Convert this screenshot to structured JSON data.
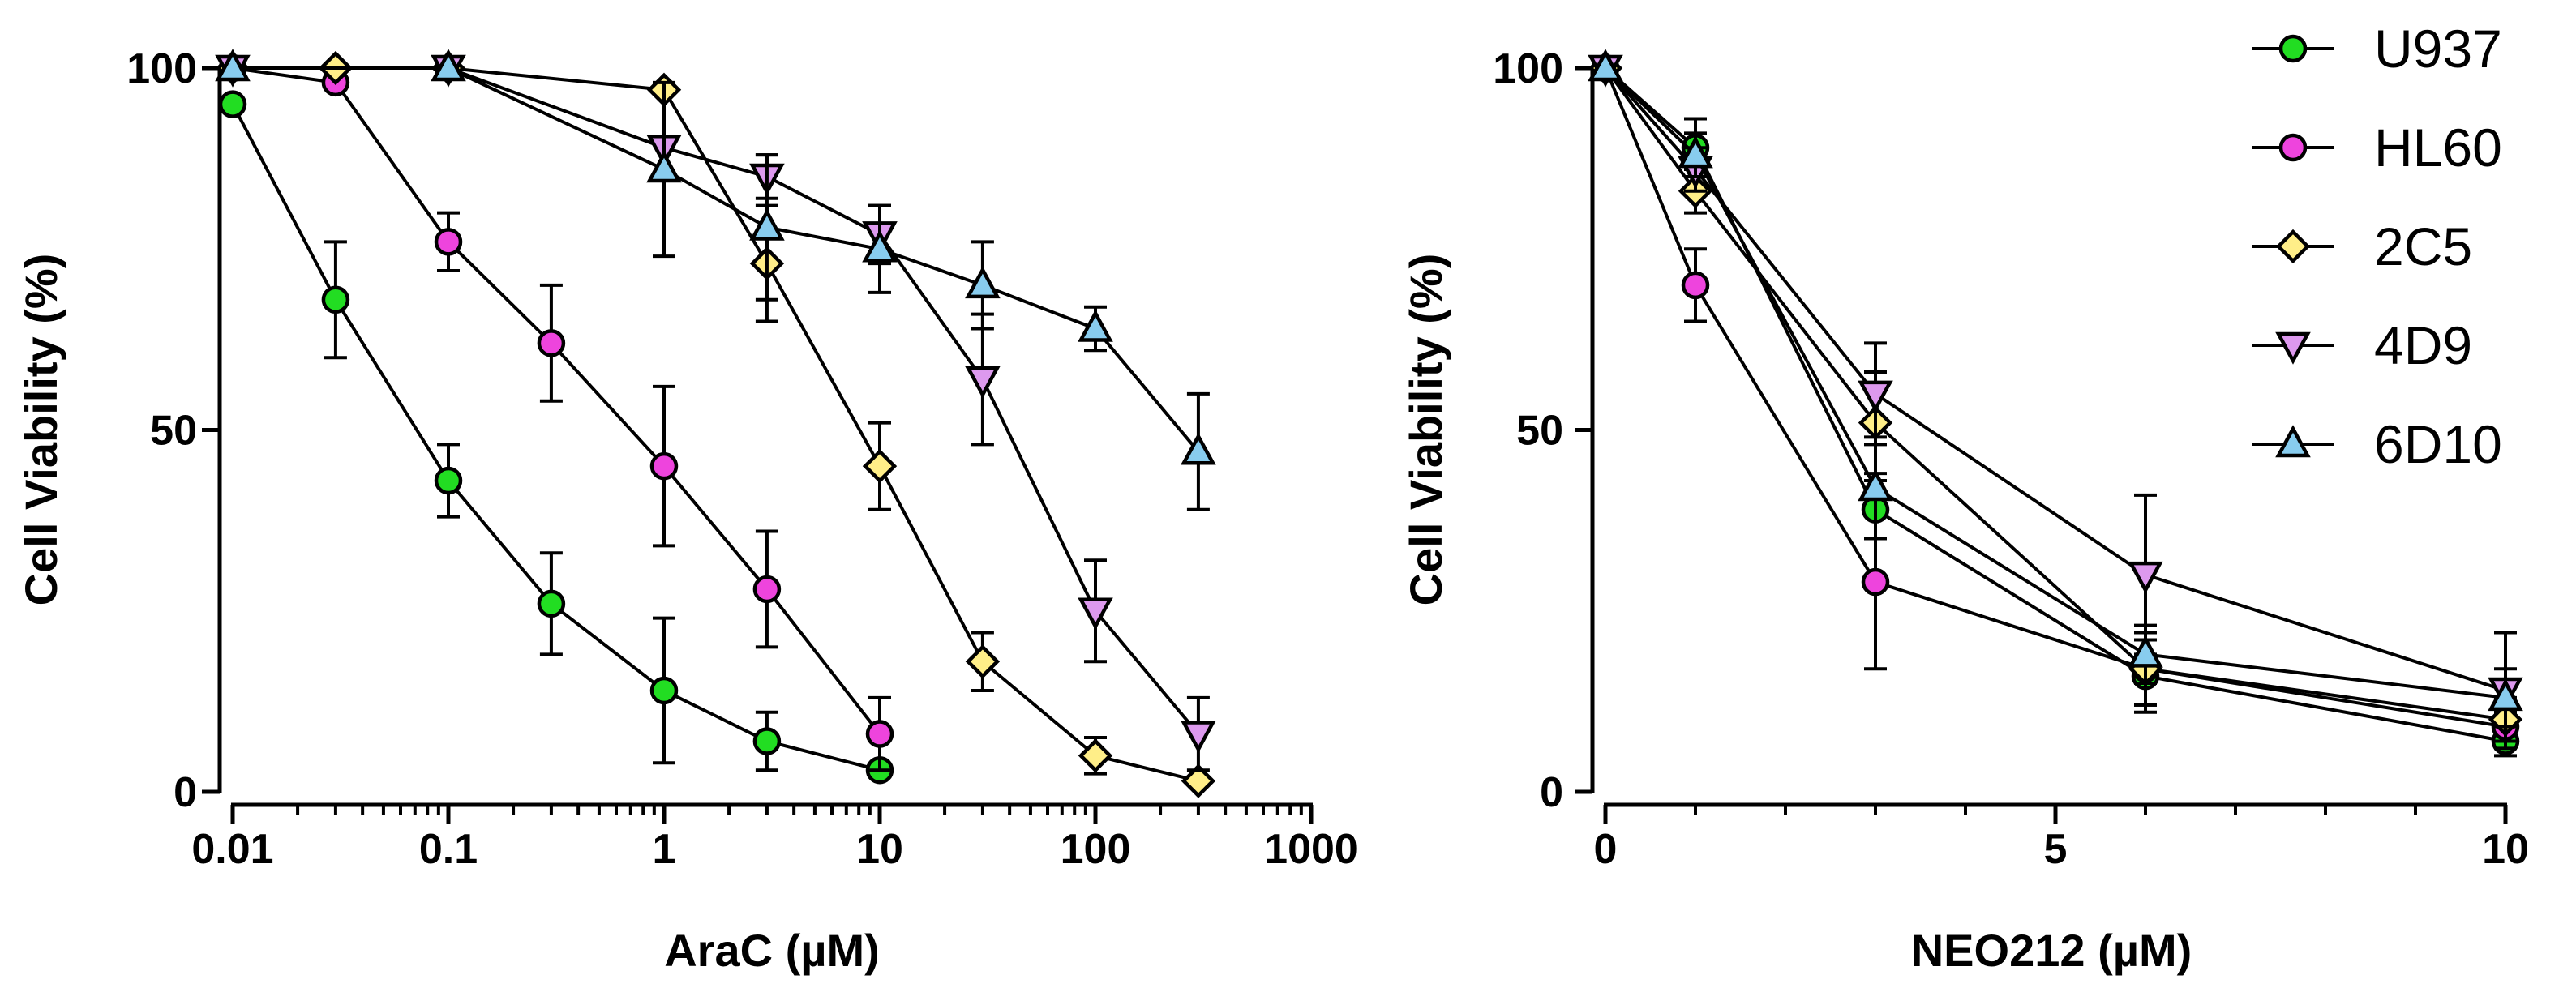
{
  "legend": {
    "location": "top-right",
    "entries": [
      {
        "name": "U937",
        "color": "#22dd22",
        "marker": "circle"
      },
      {
        "name": "HL60",
        "color": "#ee44dd",
        "marker": "circle"
      },
      {
        "name": "2C5",
        "color": "#ffee88",
        "marker": "diamond"
      },
      {
        "name": "4D9",
        "color": "#dd99ee",
        "marker": "triangle-down"
      },
      {
        "name": "6D10",
        "color": "#88ccee",
        "marker": "triangle-up"
      }
    ]
  },
  "chart_data": [
    {
      "type": "line",
      "xscale": "log",
      "xlabel": "AraC (µM)",
      "ylabel": "Cell Viability (%)",
      "xlim": [
        0.01,
        1000
      ],
      "ylim": [
        0,
        100
      ],
      "xticks": [
        0.01,
        0.1,
        1,
        10,
        100,
        1000
      ],
      "xtick_labels": [
        "0.01",
        "0.1",
        "1",
        "10",
        "100",
        "1000"
      ],
      "yticks": [
        0,
        50,
        100
      ],
      "ytick_labels": [
        "0",
        "50",
        "100"
      ],
      "series": [
        {
          "name": "U937",
          "x": [
            0.01,
            0.03,
            0.1,
            0.3,
            1,
            3,
            10
          ],
          "y": [
            95,
            68,
            43,
            26,
            14,
            7,
            3
          ],
          "err": [
            0,
            8,
            5,
            7,
            10,
            4,
            0
          ]
        },
        {
          "name": "HL60",
          "x": [
            0.01,
            0.03,
            0.1,
            0.3,
            1,
            3,
            10
          ],
          "y": [
            100,
            98,
            76,
            62,
            45,
            28,
            8
          ],
          "err": [
            0,
            0,
            4,
            8,
            11,
            8,
            5
          ]
        },
        {
          "name": "2C5",
          "x": [
            0.01,
            0.03,
            0.1,
            1,
            3,
            10,
            30,
            100,
            300
          ],
          "y": [
            100,
            100,
            100,
            97,
            73,
            45,
            18,
            5,
            1.5
          ],
          "err": [
            0,
            0,
            0,
            0,
            8,
            6,
            4,
            2.5,
            0
          ]
        },
        {
          "name": "4D9",
          "x": [
            0.01,
            0.1,
            1,
            3,
            10,
            30,
            100,
            300
          ],
          "y": [
            100,
            100,
            89,
            85,
            77,
            57,
            25,
            8
          ],
          "err": [
            0,
            0,
            0,
            3,
            4,
            9,
            7,
            5
          ]
        },
        {
          "name": "6D10",
          "x": [
            0.01,
            0.1,
            1,
            3,
            10,
            30,
            100,
            300
          ],
          "y": [
            100,
            100,
            86,
            78,
            75,
            70,
            64,
            47
          ],
          "err": [
            0,
            0,
            12,
            10,
            6,
            6,
            3,
            8
          ]
        }
      ]
    },
    {
      "type": "line",
      "xscale": "linear",
      "xlabel": "NEO212 (µM)",
      "ylabel": "Cell Viability (%)",
      "xlim": [
        0,
        10
      ],
      "ylim": [
        0,
        100
      ],
      "xticks": [
        0,
        5,
        10
      ],
      "xtick_labels": [
        "0",
        "5",
        "10"
      ],
      "xminor": [
        1,
        2,
        3,
        4,
        6,
        7,
        8,
        9
      ],
      "yticks": [
        0,
        50,
        100
      ],
      "ytick_labels": [
        "0",
        "50",
        "100"
      ],
      "series": [
        {
          "name": "U937",
          "x": [
            0,
            1,
            3,
            6,
            10
          ],
          "y": [
            100,
            89,
            39,
            16,
            7
          ],
          "err": [
            0,
            4,
            4,
            5,
            2
          ]
        },
        {
          "name": "HL60",
          "x": [
            0,
            1,
            3,
            6,
            10
          ],
          "y": [
            100,
            70,
            29,
            17,
            9
          ],
          "err": [
            0,
            5,
            12,
            5,
            2
          ]
        },
        {
          "name": "2C5",
          "x": [
            0,
            1,
            3,
            6,
            10
          ],
          "y": [
            100,
            83,
            51,
            17,
            10
          ],
          "err": [
            0,
            3,
            7,
            5,
            3
          ]
        },
        {
          "name": "4D9",
          "x": [
            0,
            1,
            3,
            6,
            10
          ],
          "y": [
            100,
            86,
            55,
            30,
            14
          ],
          "err": [
            0,
            3,
            7,
            11,
            8
          ]
        },
        {
          "name": "6D10",
          "x": [
            0,
            1,
            3,
            6,
            10
          ],
          "y": [
            100,
            88,
            42,
            19,
            13
          ],
          "err": [
            0,
            3,
            7,
            4,
            4
          ]
        }
      ]
    }
  ]
}
